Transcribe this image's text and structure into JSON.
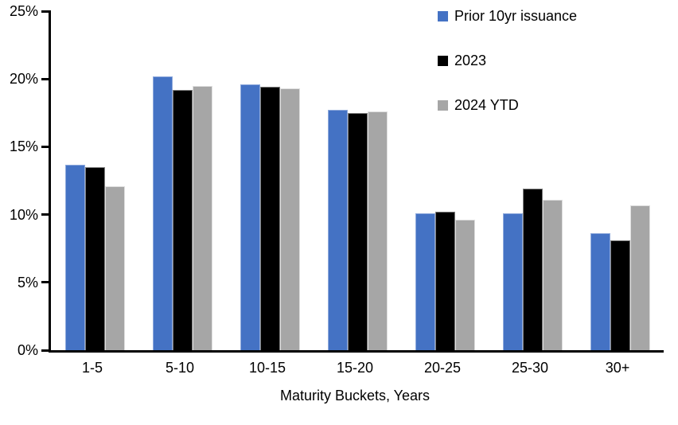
{
  "chart_data": {
    "type": "bar",
    "title": "",
    "xlabel": "Maturity Buckets, Years",
    "ylabel": "",
    "ylim": [
      0,
      25
    ],
    "y_tick_step": 5,
    "y_ticks": [
      {
        "value": 25,
        "label": "25%"
      },
      {
        "value": 20,
        "label": "20%"
      },
      {
        "value": 15,
        "label": "15%"
      },
      {
        "value": 10,
        "label": "10%"
      },
      {
        "value": 5,
        "label": "5%"
      },
      {
        "value": 0,
        "label": "0%"
      }
    ],
    "categories": [
      "1-5",
      "5-10",
      "10-15",
      "15-20",
      "20-25",
      "25-30",
      "30+"
    ],
    "series": [
      {
        "name": "Prior 10yr issuance",
        "color": "#4472C4",
        "border_color": "#8FAADC",
        "values": [
          13.7,
          20.2,
          19.6,
          17.7,
          10.1,
          10.1,
          8.6
        ]
      },
      {
        "name": "2023",
        "color": "#000000",
        "border_color": "#7F7F7F",
        "values": [
          13.5,
          19.2,
          19.4,
          17.5,
          10.2,
          11.9,
          8.1
        ]
      },
      {
        "name": "2024 YTD",
        "color": "#A6A6A6",
        "border_color": "#DFDFDF",
        "values": [
          12.1,
          19.5,
          19.3,
          17.6,
          9.6,
          11.1,
          10.7
        ]
      }
    ],
    "legend_position": "top-right",
    "grid": false,
    "axis_color": "#000000",
    "background": "#FFFFFF"
  }
}
